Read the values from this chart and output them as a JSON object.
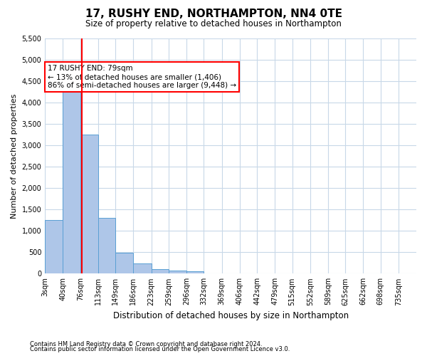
{
  "title": "17, RUSHY END, NORTHAMPTON, NN4 0TE",
  "subtitle": "Size of property relative to detached houses in Northampton",
  "xlabel": "Distribution of detached houses by size in Northampton",
  "ylabel": "Number of detached properties",
  "bar_color": "#aec6e8",
  "bar_edge_color": "#5a9fd4",
  "grid_color": "#c8d8e8",
  "background_color": "#ffffff",
  "annotation_box_color": "#cc0000",
  "annotation_text": "17 RUSHY END: 79sqm\n← 13% of detached houses are smaller (1,406)\n86% of semi-detached houses are larger (9,448) →",
  "property_line_x": 79,
  "categories": [
    "3sqm",
    "40sqm",
    "76sqm",
    "113sqm",
    "149sqm",
    "186sqm",
    "223sqm",
    "259sqm",
    "296sqm",
    "332sqm",
    "369sqm",
    "406sqm",
    "442sqm",
    "479sqm",
    "515sqm",
    "552sqm",
    "589sqm",
    "625sqm",
    "662sqm",
    "698sqm",
    "735sqm"
  ],
  "bin_edges": [
    3,
    40,
    76,
    113,
    149,
    186,
    223,
    259,
    296,
    332,
    369,
    406,
    442,
    479,
    515,
    552,
    589,
    625,
    662,
    698,
    735
  ],
  "bar_heights": [
    1250,
    4300,
    3250,
    1300,
    480,
    230,
    110,
    80,
    60,
    0,
    0,
    0,
    0,
    0,
    0,
    0,
    0,
    0,
    0,
    0
  ],
  "ylim": [
    0,
    5500
  ],
  "yticks": [
    0,
    500,
    1000,
    1500,
    2000,
    2500,
    3000,
    3500,
    4000,
    4500,
    5000,
    5500
  ],
  "footnote1": "Contains HM Land Registry data © Crown copyright and database right 2024.",
  "footnote2": "Contains public sector information licensed under the Open Government Licence v3.0."
}
